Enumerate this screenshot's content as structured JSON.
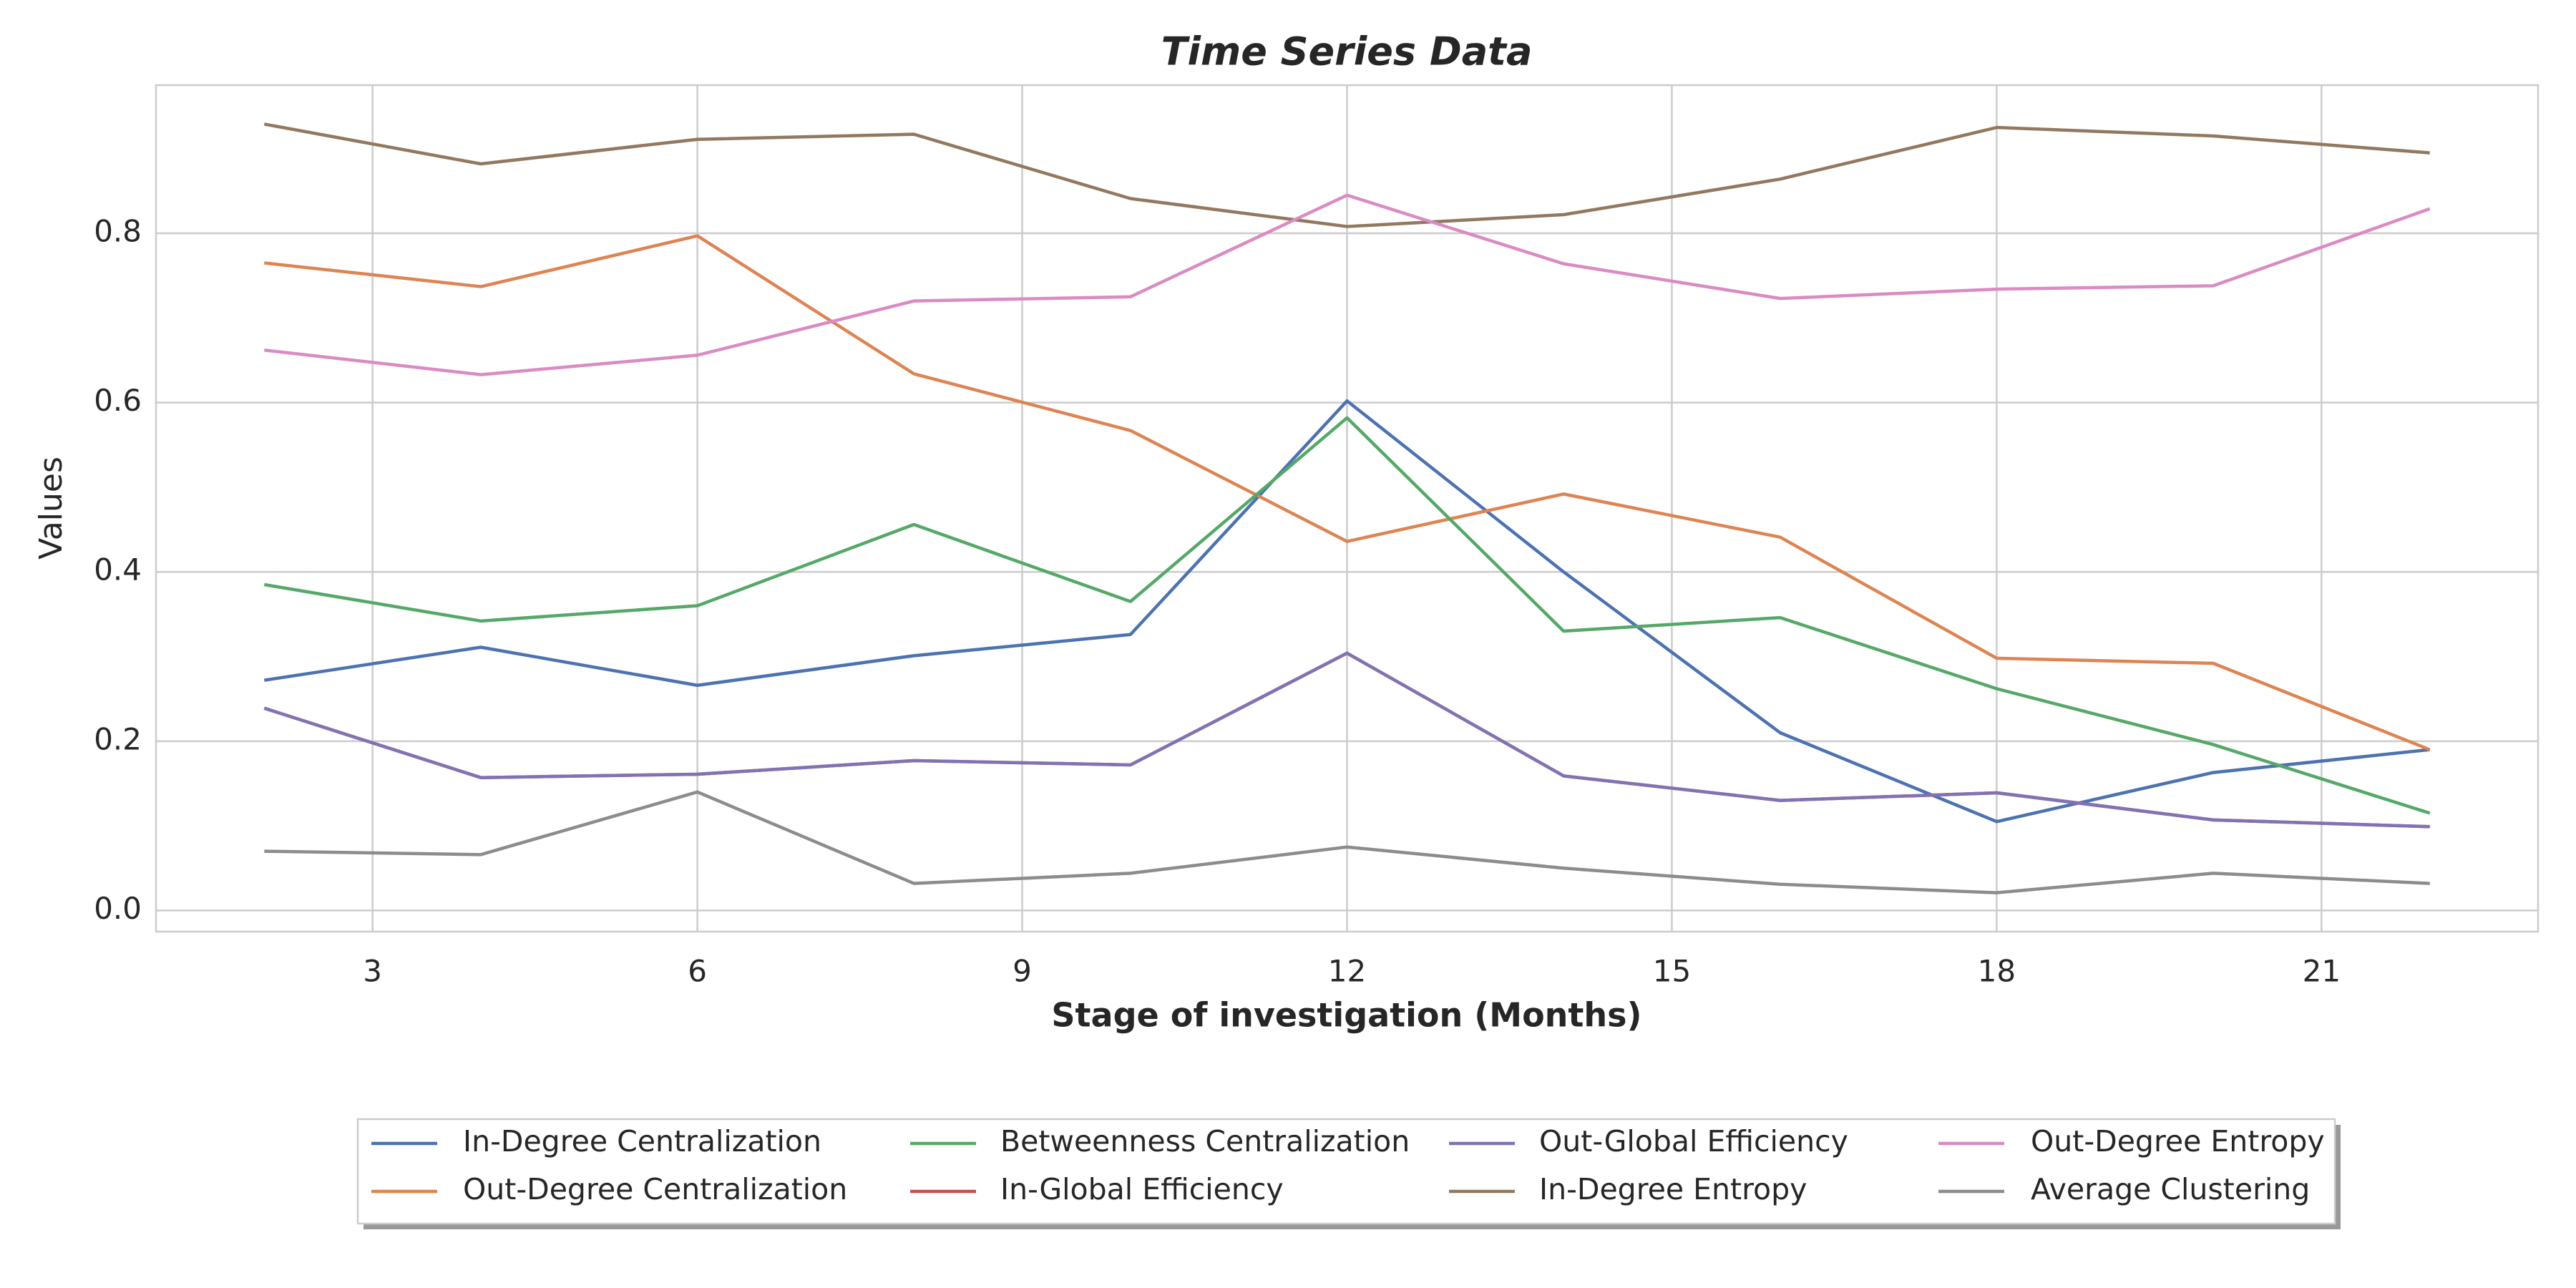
{
  "chart_data": {
    "type": "line",
    "title": "Time Series Data",
    "x_label": "Stage of investigation (Months)",
    "y_label": "Values",
    "x": [
      2,
      4,
      6,
      8,
      10,
      12,
      14,
      16,
      18,
      20,
      22
    ],
    "series": [
      {
        "name": "In-Degree Centralization",
        "color": "#4c72b0",
        "values": [
          0.272,
          0.311,
          0.266,
          0.301,
          0.326,
          0.602,
          0.4,
          0.21,
          0.105,
          0.163,
          0.19
        ]
      },
      {
        "name": "Out-Degree Centralization",
        "color": "#dd8452",
        "values": [
          0.765,
          0.737,
          0.797,
          0.634,
          0.567,
          0.436,
          0.492,
          0.441,
          0.298,
          0.292,
          0.19
        ]
      },
      {
        "name": "Betweenness Centralization",
        "color": "#55a868",
        "values": [
          0.385,
          0.342,
          0.36,
          0.456,
          0.365,
          0.582,
          0.33,
          0.346,
          0.262,
          0.196,
          0.115
        ]
      },
      {
        "name": "In-Global Efficiency",
        "color": "#c44e52",
        "values": [
          0.239,
          0.157,
          0.161,
          0.177,
          0.172,
          0.304,
          0.159,
          0.13,
          0.139,
          0.107,
          0.099
        ]
      },
      {
        "name": "Out-Global Efficiency",
        "color": "#8172b3",
        "values": [
          0.239,
          0.157,
          0.161,
          0.177,
          0.172,
          0.304,
          0.159,
          0.13,
          0.139,
          0.107,
          0.099
        ]
      },
      {
        "name": "In-Degree Entropy",
        "color": "#937860",
        "values": [
          0.929,
          0.882,
          0.911,
          0.917,
          0.841,
          0.808,
          0.822,
          0.864,
          0.925,
          0.915,
          0.895
        ]
      },
      {
        "name": "Out-Degree Entropy",
        "color": "#da8bc3",
        "values": [
          0.662,
          0.633,
          0.656,
          0.72,
          0.725,
          0.845,
          0.764,
          0.723,
          0.734,
          0.738,
          0.829
        ]
      },
      {
        "name": "Average Clustering",
        "color": "#8c8c8c",
        "values": [
          0.07,
          0.066,
          0.14,
          0.032,
          0.044,
          0.075,
          0.05,
          0.031,
          0.021,
          0.044,
          0.032
        ]
      }
    ],
    "xlim": [
      1,
      23
    ],
    "xticks": [
      3,
      6,
      9,
      12,
      15,
      18,
      21
    ],
    "ylim": [
      -0.025,
      0.975
    ],
    "yticks": [
      {
        "value": 0,
        "label": "0.0"
      },
      0.2,
      0.4,
      0.6,
      0.8
    ],
    "grid": true,
    "legend": "lower center"
  }
}
